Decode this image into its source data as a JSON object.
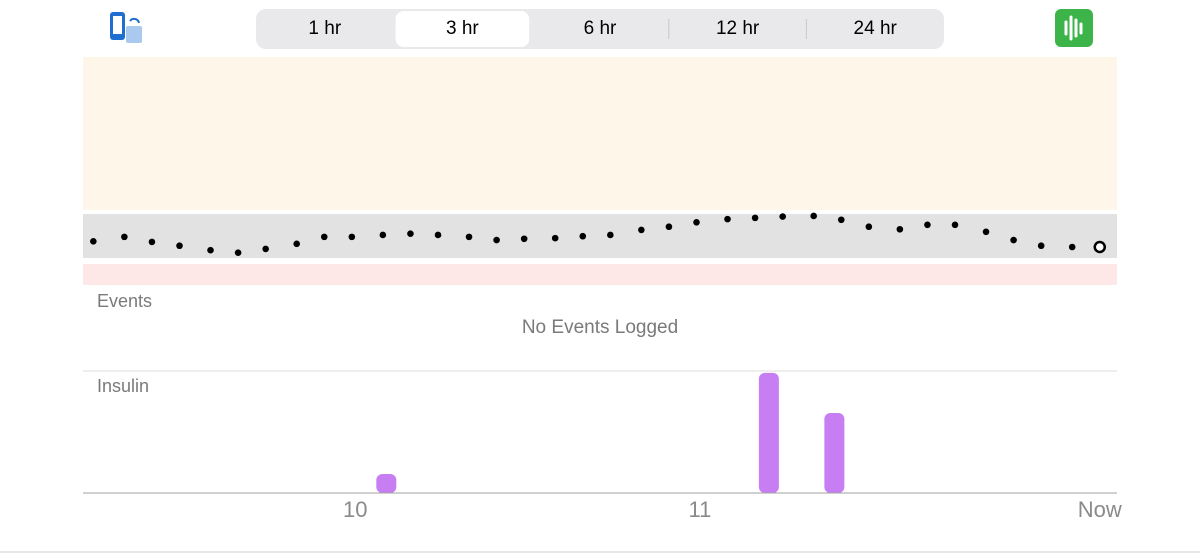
{
  "range_selector": {
    "options": [
      "1 hr",
      "3 hr",
      "6 hr",
      "12 hr",
      "24 hr"
    ],
    "selected": 1
  },
  "events": {
    "title": "Events",
    "empty_message": "No Events Logged"
  },
  "chart_data": [
    {
      "type": "scatter",
      "color": "#000000",
      "last_point_open": true,
      "xlim": [
        9.21,
        12.21
      ],
      "ylim": [
        40,
        400
      ],
      "x": [
        9.24,
        9.33,
        9.41,
        9.49,
        9.58,
        9.66,
        9.74,
        9.83,
        9.91,
        9.99,
        10.08,
        10.16,
        10.24,
        10.33,
        10.41,
        10.49,
        10.58,
        10.66,
        10.74,
        10.83,
        10.91,
        10.99,
        11.08,
        11.16,
        11.24,
        11.33,
        11.41,
        11.49,
        11.58,
        11.66,
        11.74,
        11.83,
        11.91,
        11.99,
        12.08,
        12.16
      ],
      "values": [
        109,
        116,
        108,
        102,
        95,
        91,
        97,
        105,
        116,
        116,
        119,
        121,
        119,
        116,
        111,
        113,
        114,
        117,
        119,
        127,
        132,
        139,
        144,
        146,
        148,
        149,
        143,
        132,
        128,
        135,
        135,
        124,
        111,
        102,
        100,
        100
      ]
    },
    {
      "type": "bar",
      "title": "Insulin",
      "color": "#c77ef2",
      "xlim": [
        9.21,
        12.21
      ],
      "ylim": [
        0,
        3.2
      ],
      "x": [
        10.09,
        11.2,
        11.39
      ],
      "values": [
        0.5,
        3.15,
        2.1
      ],
      "xticks": [
        10,
        11,
        {
          "value": 12.16,
          "label": "Now"
        }
      ]
    }
  ]
}
